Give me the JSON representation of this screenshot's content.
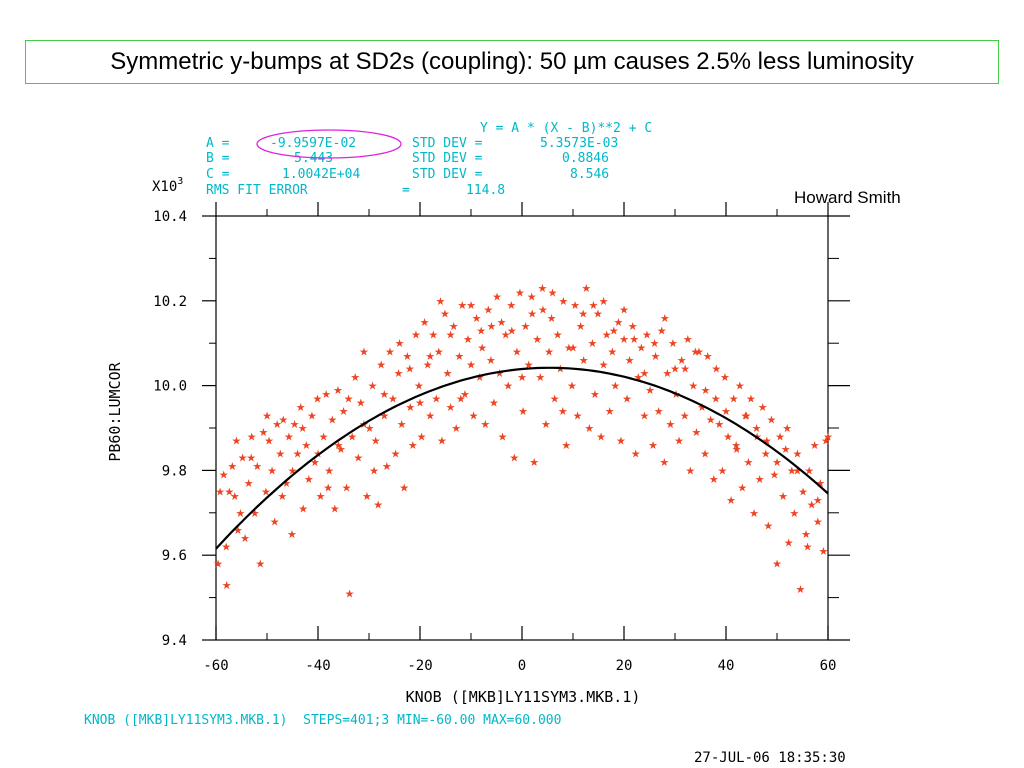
{
  "title": "Symmetric y-bumps at SD2s (coupling): 50 µm causes 2.5% less luminosity",
  "author": "Howard Smith",
  "fit_box": {
    "equation": "Y = A * (X - B)**2 + C",
    "rows": [
      {
        "label": "A =",
        "value": "-9.9597E-02",
        "std_label": "STD DEV =",
        "std_value": "5.3573E-03"
      },
      {
        "label": "B =",
        "value": "5.443",
        "std_label": "STD DEV =",
        "std_value": "0.8846"
      },
      {
        "label": "C =",
        "value": "1.0042E+04",
        "std_label": "STD DEV =",
        "std_value": "8.546"
      }
    ],
    "rms_label": "RMS FIT ERROR",
    "rms_eq": "=",
    "rms_value": "114.8",
    "highlight_color": "#dd22dd"
  },
  "footer": {
    "knob_info": "KNOB ([MKB]LY11SYM3.MKB.1)  STEPS=401;3 MIN=-60.00 MAX=60.000",
    "timestamp": "27-JUL-06 18:35:30"
  },
  "chart_data": {
    "type": "scatter",
    "xlabel": "KNOB ([MKB]LY11SYM3.MKB.1)",
    "ylabel": "PB60:LUMCOR",
    "y_multiplier": "X10",
    "y_multiplier_exp": "3",
    "xlim": [
      -60,
      60
    ],
    "ylim": [
      9.4,
      10.4
    ],
    "x_ticks": [
      -60,
      -40,
      -20,
      0,
      20,
      40,
      60
    ],
    "x_tick_labels": [
      "-60",
      "-40",
      "-20",
      "0",
      "20",
      "40",
      "60"
    ],
    "y_ticks": [
      9.4,
      9.6,
      9.8,
      10.0,
      10.2,
      10.4
    ],
    "y_tick_labels": [
      "9.4",
      "9.6",
      "9.8",
      "10.0",
      "10.2",
      "10.4"
    ],
    "marker_color": "#ee4422",
    "fit_color": "#000000",
    "fit": {
      "model": "A*(X-B)^2+C",
      "A": -0.099597,
      "B": 5.443,
      "C": 10042.0,
      "units_scale": 1000
    },
    "points": [
      [
        -59.6,
        9.58
      ],
      [
        -59.2,
        9.75
      ],
      [
        -58.5,
        9.79
      ],
      [
        -57.9,
        9.53
      ],
      [
        -57.4,
        9.75
      ],
      [
        -56.8,
        9.81
      ],
      [
        -56.3,
        9.74
      ],
      [
        -55.7,
        9.66
      ],
      [
        -55.2,
        9.7
      ],
      [
        -54.8,
        9.83
      ],
      [
        -54.3,
        9.64
      ],
      [
        -53.6,
        9.77
      ],
      [
        -53.1,
        9.83
      ],
      [
        -52.4,
        9.7
      ],
      [
        -51.9,
        9.81
      ],
      [
        -51.3,
        9.58
      ],
      [
        -50.7,
        9.89
      ],
      [
        -50.2,
        9.75
      ],
      [
        -49.6,
        9.87
      ],
      [
        -49.0,
        9.8
      ],
      [
        -48.5,
        9.68
      ],
      [
        -48.0,
        9.91
      ],
      [
        -47.4,
        9.84
      ],
      [
        -46.8,
        9.92
      ],
      [
        -46.2,
        9.77
      ],
      [
        -45.7,
        9.88
      ],
      [
        -45.1,
        9.65
      ],
      [
        -44.6,
        9.91
      ],
      [
        -44.0,
        9.84
      ],
      [
        -43.4,
        9.95
      ],
      [
        -42.9,
        9.71
      ],
      [
        -42.3,
        9.86
      ],
      [
        -41.8,
        9.78
      ],
      [
        -41.2,
        9.93
      ],
      [
        -40.6,
        9.82
      ],
      [
        -40.1,
        9.97
      ],
      [
        -39.5,
        9.74
      ],
      [
        -38.9,
        9.88
      ],
      [
        -38.4,
        9.98
      ],
      [
        -37.8,
        9.8
      ],
      [
        -37.2,
        9.92
      ],
      [
        -36.7,
        9.71
      ],
      [
        -36.1,
        9.99
      ],
      [
        -35.5,
        9.85
      ],
      [
        -35.0,
        9.94
      ],
      [
        -34.4,
        9.76
      ],
      [
        -33.8,
        9.51
      ],
      [
        -33.3,
        9.88
      ],
      [
        -32.7,
        10.02
      ],
      [
        -32.1,
        9.83
      ],
      [
        -31.6,
        9.96
      ],
      [
        -31.0,
        10.08
      ],
      [
        -30.4,
        9.74
      ],
      [
        -29.9,
        9.9
      ],
      [
        -29.3,
        10.0
      ],
      [
        -28.7,
        9.87
      ],
      [
        -28.2,
        9.72
      ],
      [
        -27.6,
        10.05
      ],
      [
        -27.0,
        9.93
      ],
      [
        -26.5,
        9.81
      ],
      [
        -25.9,
        10.08
      ],
      [
        -25.3,
        9.97
      ],
      [
        -24.8,
        9.84
      ],
      [
        -24.2,
        10.03
      ],
      [
        -23.6,
        9.91
      ],
      [
        -23.1,
        9.76
      ],
      [
        -22.5,
        10.07
      ],
      [
        -21.9,
        9.95
      ],
      [
        -21.4,
        9.86
      ],
      [
        -20.8,
        10.12
      ],
      [
        -20.2,
        10.0
      ],
      [
        -19.7,
        9.88
      ],
      [
        -19.1,
        10.15
      ],
      [
        -18.5,
        10.05
      ],
      [
        -18.0,
        9.93
      ],
      [
        -17.4,
        10.12
      ],
      [
        -16.8,
        9.97
      ],
      [
        -16.3,
        10.08
      ],
      [
        -15.7,
        9.87
      ],
      [
        -15.1,
        10.17
      ],
      [
        -14.6,
        10.03
      ],
      [
        -14.0,
        9.95
      ],
      [
        -13.4,
        10.14
      ],
      [
        -12.9,
        9.9
      ],
      [
        -12.3,
        10.07
      ],
      [
        -11.7,
        10.19
      ],
      [
        -11.2,
        9.98
      ],
      [
        -10.6,
        10.11
      ],
      [
        -10.0,
        10.05
      ],
      [
        -9.5,
        9.93
      ],
      [
        -8.9,
        10.16
      ],
      [
        -8.3,
        10.02
      ],
      [
        -7.8,
        10.09
      ],
      [
        -7.2,
        9.91
      ],
      [
        -6.6,
        10.18
      ],
      [
        -6.1,
        10.06
      ],
      [
        -5.5,
        9.96
      ],
      [
        -4.9,
        10.21
      ],
      [
        -4.4,
        10.03
      ],
      [
        -3.8,
        9.88
      ],
      [
        -3.2,
        10.12
      ],
      [
        -2.7,
        10.0
      ],
      [
        -2.1,
        10.19
      ],
      [
        -1.5,
        9.83
      ],
      [
        -1.0,
        10.08
      ],
      [
        -0.4,
        10.22
      ],
      [
        0.2,
        9.94
      ],
      [
        0.7,
        10.14
      ],
      [
        1.3,
        10.05
      ],
      [
        1.9,
        10.21
      ],
      [
        2.4,
        9.82
      ],
      [
        3.0,
        10.11
      ],
      [
        3.6,
        10.02
      ],
      [
        4.1,
        10.18
      ],
      [
        4.7,
        9.91
      ],
      [
        5.3,
        10.08
      ],
      [
        5.8,
        10.16
      ],
      [
        6.4,
        9.97
      ],
      [
        7.0,
        10.12
      ],
      [
        7.5,
        10.04
      ],
      [
        8.1,
        10.2
      ],
      [
        8.7,
        9.86
      ],
      [
        9.2,
        10.09
      ],
      [
        9.8,
        10.0
      ],
      [
        10.4,
        10.19
      ],
      [
        10.9,
        9.93
      ],
      [
        11.5,
        10.14
      ],
      [
        12.1,
        10.06
      ],
      [
        12.6,
        10.23
      ],
      [
        13.2,
        9.9
      ],
      [
        13.8,
        10.1
      ],
      [
        14.3,
        9.98
      ],
      [
        14.9,
        10.17
      ],
      [
        15.5,
        9.88
      ],
      [
        16.0,
        10.05
      ],
      [
        16.6,
        10.12
      ],
      [
        17.2,
        9.94
      ],
      [
        17.7,
        10.08
      ],
      [
        18.3,
        10.0
      ],
      [
        18.9,
        10.15
      ],
      [
        19.4,
        9.87
      ],
      [
        20.0,
        10.11
      ],
      [
        20.6,
        9.97
      ],
      [
        21.1,
        10.06
      ],
      [
        21.7,
        10.14
      ],
      [
        22.3,
        9.84
      ],
      [
        22.8,
        10.02
      ],
      [
        23.4,
        10.09
      ],
      [
        24.0,
        9.93
      ],
      [
        24.5,
        10.12
      ],
      [
        25.1,
        9.99
      ],
      [
        25.7,
        9.86
      ],
      [
        26.2,
        10.07
      ],
      [
        26.8,
        9.94
      ],
      [
        27.4,
        10.13
      ],
      [
        27.9,
        9.82
      ],
      [
        28.5,
        10.03
      ],
      [
        29.1,
        9.91
      ],
      [
        29.6,
        10.1
      ],
      [
        30.2,
        9.98
      ],
      [
        30.8,
        9.87
      ],
      [
        31.3,
        10.06
      ],
      [
        31.9,
        9.93
      ],
      [
        32.5,
        10.11
      ],
      [
        33.0,
        9.8
      ],
      [
        33.6,
        10.0
      ],
      [
        34.2,
        9.89
      ],
      [
        34.7,
        10.08
      ],
      [
        35.3,
        9.95
      ],
      [
        35.9,
        9.84
      ],
      [
        36.4,
        10.07
      ],
      [
        37.0,
        9.92
      ],
      [
        37.6,
        9.78
      ],
      [
        38.1,
        10.04
      ],
      [
        38.7,
        9.91
      ],
      [
        39.3,
        9.8
      ],
      [
        39.8,
        10.02
      ],
      [
        40.4,
        9.88
      ],
      [
        41.0,
        9.73
      ],
      [
        41.5,
        9.97
      ],
      [
        42.1,
        9.85
      ],
      [
        42.7,
        10.0
      ],
      [
        43.2,
        9.76
      ],
      [
        43.8,
        9.93
      ],
      [
        44.4,
        9.82
      ],
      [
        44.9,
        9.97
      ],
      [
        45.5,
        9.7
      ],
      [
        46.1,
        9.88
      ],
      [
        46.6,
        9.78
      ],
      [
        47.2,
        9.95
      ],
      [
        47.8,
        9.84
      ],
      [
        48.3,
        9.67
      ],
      [
        48.9,
        9.92
      ],
      [
        49.5,
        9.79
      ],
      [
        50.0,
        9.58
      ],
      [
        50.6,
        9.88
      ],
      [
        51.2,
        9.74
      ],
      [
        51.7,
        9.85
      ],
      [
        52.3,
        9.63
      ],
      [
        52.9,
        9.8
      ],
      [
        53.4,
        9.7
      ],
      [
        54.0,
        9.84
      ],
      [
        54.6,
        9.52
      ],
      [
        55.1,
        9.75
      ],
      [
        55.7,
        9.65
      ],
      [
        56.3,
        9.8
      ],
      [
        56.8,
        9.72
      ],
      [
        57.4,
        9.86
      ],
      [
        58.0,
        9.68
      ],
      [
        58.5,
        9.77
      ],
      [
        59.1,
        9.61
      ],
      [
        59.6,
        9.87
      ],
      [
        -58.0,
        9.62
      ],
      [
        -53.0,
        9.88
      ],
      [
        -47.0,
        9.74
      ],
      [
        -43.0,
        9.9
      ],
      [
        -38.0,
        9.76
      ],
      [
        -34.0,
        9.97
      ],
      [
        -29.0,
        9.8
      ],
      [
        -24.0,
        10.1
      ],
      [
        -20.0,
        9.96
      ],
      [
        -16.0,
        10.2
      ],
      [
        -12.0,
        9.97
      ],
      [
        -8.0,
        10.13
      ],
      [
        -4.0,
        10.15
      ],
      [
        0.0,
        10.02
      ],
      [
        4.0,
        10.23
      ],
      [
        8.0,
        9.94
      ],
      [
        12.0,
        10.17
      ],
      [
        16.0,
        10.2
      ],
      [
        20.0,
        10.18
      ],
      [
        24.0,
        10.03
      ],
      [
        28.0,
        10.16
      ],
      [
        32.0,
        10.04
      ],
      [
        36.0,
        9.99
      ],
      [
        40.0,
        9.94
      ],
      [
        44.0,
        9.93
      ],
      [
        48.0,
        9.87
      ],
      [
        52.0,
        9.9
      ],
      [
        56.0,
        9.62
      ],
      [
        -56.0,
        9.87
      ],
      [
        -45.0,
        9.8
      ],
      [
        -36.0,
        9.86
      ],
      [
        -27.0,
        9.98
      ],
      [
        -18.0,
        10.07
      ],
      [
        -10.0,
        10.19
      ],
      [
        -2.0,
        10.13
      ],
      [
        6.0,
        10.22
      ],
      [
        14.0,
        10.19
      ],
      [
        22.0,
        10.11
      ],
      [
        30.0,
        10.04
      ],
      [
        38.0,
        9.97
      ],
      [
        46.0,
        9.9
      ],
      [
        54.0,
        9.8
      ],
      [
        58.0,
        9.73
      ],
      [
        -50.0,
        9.93
      ],
      [
        -40.0,
        9.84
      ],
      [
        -31.0,
        9.91
      ],
      [
        -22.0,
        10.04
      ],
      [
        -14.0,
        10.12
      ],
      [
        -6.0,
        10.14
      ],
      [
        2.0,
        10.17
      ],
      [
        10.0,
        10.09
      ],
      [
        18.0,
        10.13
      ],
      [
        26.0,
        10.1
      ],
      [
        34.0,
        10.08
      ],
      [
        42.0,
        9.86
      ],
      [
        50.0,
        9.82
      ],
      [
        60.0,
        9.88
      ]
    ]
  }
}
